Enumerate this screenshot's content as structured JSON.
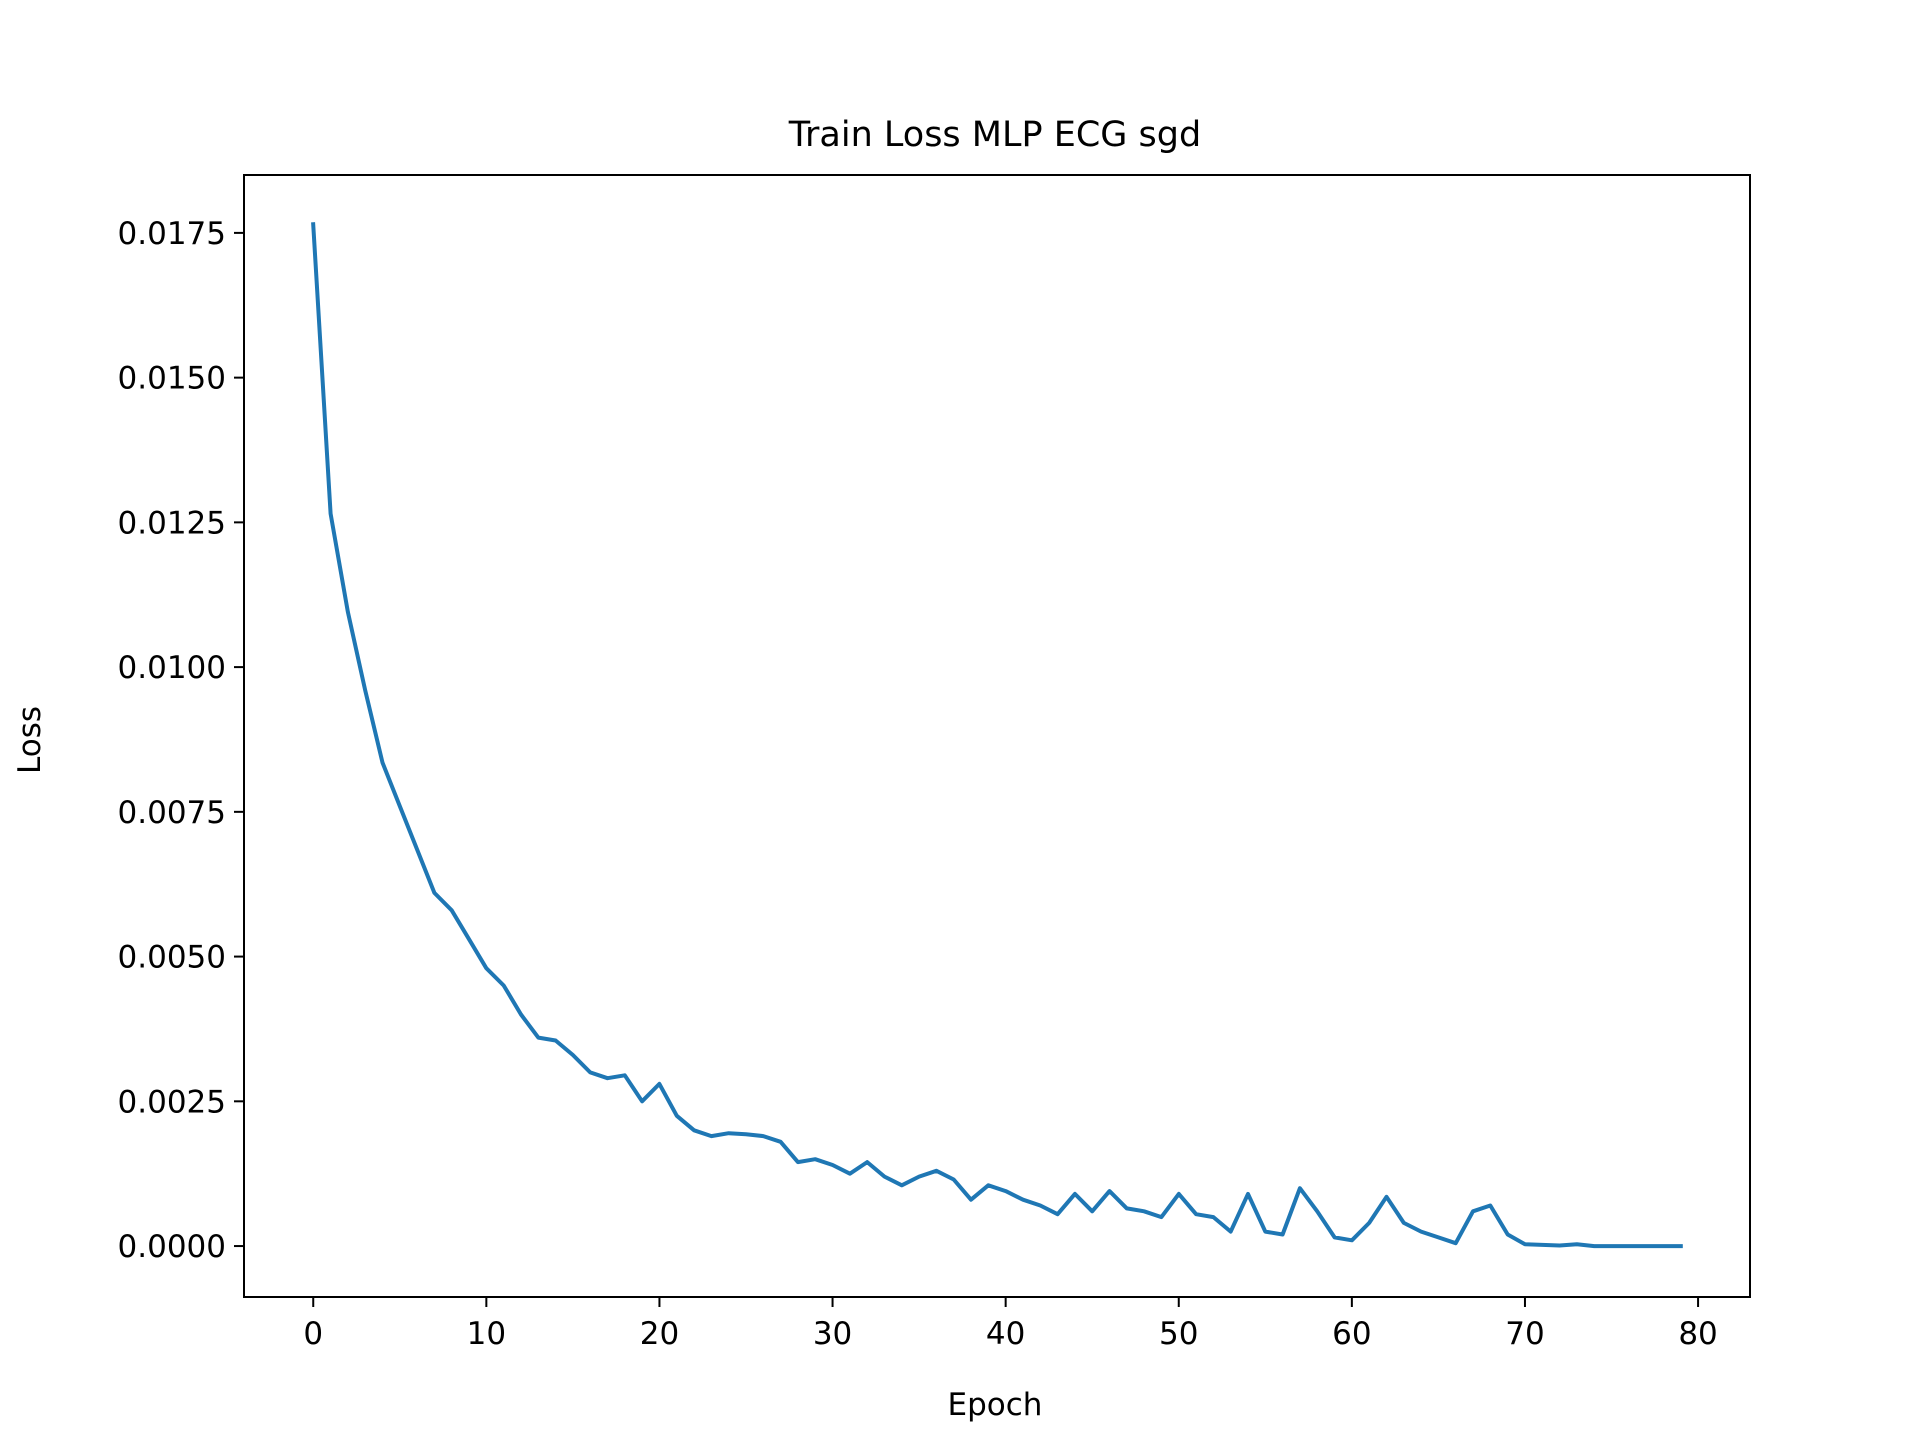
{
  "chart_data": {
    "type": "line",
    "title": "Train Loss MLP ECG sgd",
    "xlabel": "Epoch",
    "ylabel": "Loss",
    "xlim": [
      -4,
      83
    ],
    "ylim": [
      -0.00088,
      0.0185
    ],
    "xticks": [
      0,
      10,
      20,
      30,
      40,
      50,
      60,
      70,
      80
    ],
    "xtick_labels": [
      "0",
      "10",
      "20",
      "30",
      "40",
      "50",
      "60",
      "70",
      "80"
    ],
    "yticks": [
      0.0,
      0.0025,
      0.005,
      0.0075,
      0.01,
      0.0125,
      0.015,
      0.0175
    ],
    "ytick_labels": [
      "0.0000",
      "0.0025",
      "0.0050",
      "0.0075",
      "0.0100",
      "0.0125",
      "0.0150",
      "0.0175"
    ],
    "grid": false,
    "legend": "none",
    "series": [
      {
        "color": "#1f77b4",
        "x": [
          0,
          1,
          2,
          3,
          4,
          5,
          6,
          7,
          8,
          9,
          10,
          11,
          12,
          13,
          14,
          15,
          16,
          17,
          18,
          19,
          20,
          21,
          22,
          23,
          24,
          25,
          26,
          27,
          28,
          29,
          30,
          31,
          32,
          33,
          34,
          35,
          36,
          37,
          38,
          39,
          40,
          41,
          42,
          43,
          44,
          45,
          46,
          47,
          48,
          49,
          50,
          51,
          52,
          53,
          54,
          55,
          56,
          57,
          58,
          59,
          60,
          61,
          62,
          63,
          64,
          65,
          66,
          67,
          68,
          69,
          70,
          71,
          72,
          73,
          74,
          75,
          76,
          77,
          78,
          79
        ],
        "values": [
          0.01765,
          0.01265,
          0.01095,
          0.0096,
          0.00835,
          0.0076,
          0.00685,
          0.0061,
          0.0058,
          0.0053,
          0.0048,
          0.0045,
          0.004,
          0.0036,
          0.00355,
          0.0033,
          0.003,
          0.0029,
          0.00295,
          0.0025,
          0.0028,
          0.00225,
          0.002,
          0.0019,
          0.00195,
          0.00193,
          0.0019,
          0.0018,
          0.00145,
          0.0015,
          0.0014,
          0.00125,
          0.00145,
          0.0012,
          0.00105,
          0.0012,
          0.0013,
          0.00115,
          0.0008,
          0.00105,
          0.00095,
          0.0008,
          0.0007,
          0.00055,
          0.0009,
          0.0006,
          0.00095,
          0.00065,
          0.0006,
          0.0005,
          0.0009,
          0.00055,
          0.0005,
          0.00025,
          0.0009,
          0.00025,
          0.0002,
          0.001,
          0.0006,
          0.00015,
          0.0001,
          0.0004,
          0.00085,
          0.0004,
          0.00025,
          0.00015,
          5e-05,
          0.0006,
          0.0007,
          0.0002,
          3e-05,
          2e-05,
          1e-05,
          3e-05,
          0.0,
          0.0,
          0.0,
          0.0,
          0.0,
          0.0
        ]
      }
    ]
  }
}
